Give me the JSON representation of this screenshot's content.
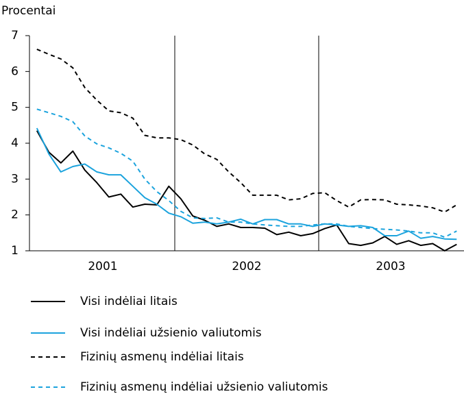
{
  "chart_data": {
    "type": "line",
    "y_label": "Procentai",
    "categories": [
      null,
      null,
      null,
      null,
      null,
      "2001",
      null,
      null,
      null,
      null,
      null,
      null,
      null,
      null,
      null,
      null,
      null,
      "2002",
      null,
      null,
      null,
      null,
      null,
      null,
      null,
      null,
      null,
      null,
      null,
      "2003",
      null,
      null,
      null,
      null,
      null,
      null
    ],
    "ylim": [
      1,
      7
    ],
    "yticks": [
      1,
      2,
      3,
      4,
      5,
      6,
      7
    ],
    "series": [
      {
        "name": "Visi indėliai litais",
        "color": "#000000",
        "dashed": false,
        "values": [
          4.35,
          3.75,
          3.45,
          3.78,
          3.25,
          2.9,
          2.5,
          2.58,
          2.22,
          2.3,
          2.28,
          2.8,
          2.45,
          1.97,
          1.85,
          1.68,
          1.75,
          1.65,
          1.65,
          1.63,
          1.45,
          1.52,
          1.42,
          1.48,
          1.62,
          1.72,
          1.2,
          1.15,
          1.22,
          1.4,
          1.18,
          1.28,
          1.15,
          1.2,
          1.0,
          1.18
        ]
      },
      {
        "name": "Visi indėliai užsienio valiutomis",
        "color": "#1ba3dd",
        "dashed": false,
        "values": [
          4.42,
          3.7,
          3.2,
          3.35,
          3.42,
          3.2,
          3.12,
          3.12,
          2.8,
          2.48,
          2.3,
          2.05,
          1.95,
          1.77,
          1.8,
          1.75,
          1.8,
          1.88,
          1.75,
          1.87,
          1.87,
          1.75,
          1.75,
          1.68,
          1.75,
          1.72,
          1.68,
          1.7,
          1.65,
          1.42,
          1.42,
          1.55,
          1.35,
          1.4,
          1.33,
          1.32
        ]
      },
      {
        "name": "Fizinių asmenų indėliai litais",
        "color": "#000000",
        "dashed": true,
        "values": [
          6.62,
          6.48,
          6.35,
          6.1,
          5.55,
          5.2,
          4.9,
          4.85,
          4.7,
          4.22,
          4.15,
          4.15,
          4.1,
          3.95,
          3.7,
          3.55,
          3.2,
          2.9,
          2.55,
          2.55,
          2.55,
          2.42,
          2.45,
          2.6,
          2.62,
          2.4,
          2.22,
          2.42,
          2.43,
          2.42,
          2.3,
          2.28,
          2.25,
          2.2,
          2.08,
          2.28
        ]
      },
      {
        "name": "Fizinių asmenų indėliai užsienio valiutomis",
        "color": "#1ba3dd",
        "dashed": true,
        "values": [
          4.95,
          4.85,
          4.75,
          4.6,
          4.2,
          3.98,
          3.87,
          3.72,
          3.5,
          3.0,
          2.65,
          2.4,
          2.1,
          1.92,
          1.9,
          1.92,
          1.8,
          1.8,
          1.75,
          1.72,
          1.7,
          1.68,
          1.68,
          1.72,
          1.75,
          1.75,
          1.68,
          1.65,
          1.62,
          1.6,
          1.58,
          1.55,
          1.5,
          1.5,
          1.38,
          1.55
        ]
      }
    ]
  }
}
